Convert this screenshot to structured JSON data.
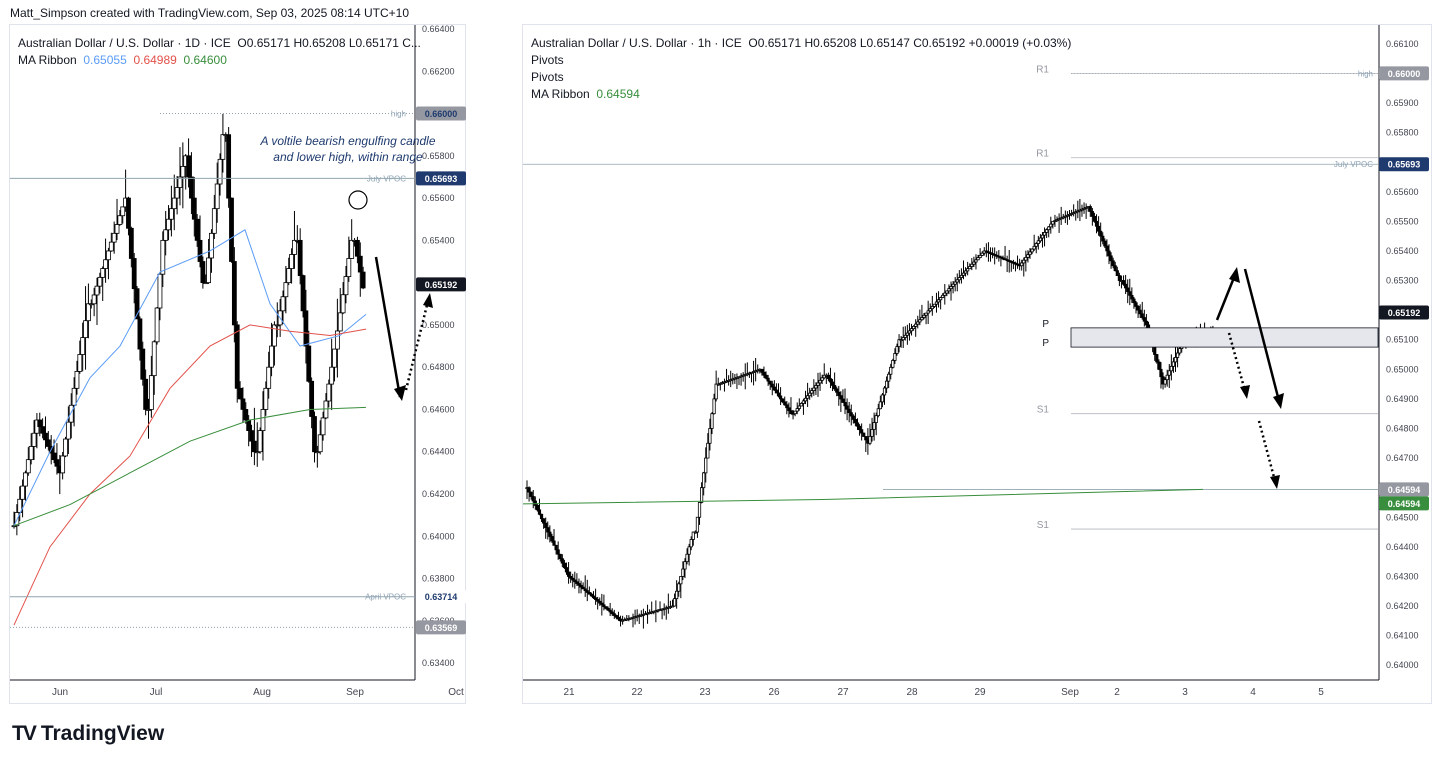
{
  "header": {
    "text": "Matt_Simpson created with TradingView.com, Sep 03, 2025 08:14 UTC+10"
  },
  "brand": {
    "logo": "TV",
    "name": "TradingView"
  },
  "colors": {
    "ma_fast": "#5b9cf6",
    "ma_mid": "#e2514a",
    "ma_slow": "#388e3c",
    "level_line": "#90a4ae",
    "last_price_bg": "#131722",
    "vpoc_bg": "#1e3a6e"
  },
  "chart_data": [
    {
      "type": "candlestick",
      "title": "Australian Dollar / U.S. Dollar · 1D · ICE",
      "ohlc_text": "O0.65171 H0.65208 L0.65171 C...",
      "indicator": {
        "name": "MA Ribbon",
        "values": [
          "0.65055",
          "0.64989",
          "0.64600"
        ]
      },
      "x_tick_labels": [
        "Jun",
        "Jul",
        "Aug",
        "Sep",
        "Oct"
      ],
      "y_tick_labels": [
        "0.63400",
        "0.63600",
        "0.63800",
        "0.64000",
        "0.64200",
        "0.64400",
        "0.64600",
        "0.64800",
        "0.65000",
        "0.65200",
        "0.65400",
        "0.65600",
        "0.65800",
        "0.66000",
        "0.66200",
        "0.66400"
      ],
      "ylim": [
        0.6332,
        0.664
      ],
      "levels": [
        {
          "label": "high",
          "value": 0.66,
          "badge": "0.66000",
          "style": "dotted"
        },
        {
          "label": "July VPOC",
          "value": 0.65693,
          "badge": "0.65693",
          "style": "solid"
        },
        {
          "label": "April VPOC",
          "value": 0.63714,
          "badge": "0.63714",
          "style": "solid"
        },
        {
          "label": "",
          "value": 0.63569,
          "badge": "0.63569",
          "style": "dotted"
        }
      ],
      "last_price": "0.65192",
      "annotation": "A voltile bearish engulfing candle and lower high, within range"
    },
    {
      "type": "candlestick",
      "title": "Australian Dollar / U.S. Dollar · 1h · ICE",
      "ohlc_text": "O0.65171 H0.65208 L0.65147 C0.65192 +0.00019 (+0.03%)",
      "indicators": [
        "Pivots",
        "Pivots"
      ],
      "indicator": {
        "name": "MA Ribbon",
        "values": [
          "0.64594"
        ]
      },
      "x_tick_labels": [
        "21",
        "22",
        "23",
        "26",
        "27",
        "28",
        "29",
        "Sep",
        "2",
        "3",
        "4",
        "5"
      ],
      "y_tick_labels": [
        "0.64000",
        "0.64100",
        "0.64200",
        "0.64300",
        "0.64400",
        "0.64500",
        "0.64600",
        "0.64700",
        "0.64800",
        "0.64900",
        "0.65000",
        "0.65100",
        "0.65200",
        "0.65300",
        "0.65400",
        "0.65500",
        "0.65600",
        "0.65700",
        "0.65800",
        "0.65900",
        "0.66000",
        "0.66100"
      ],
      "ylim": [
        0.6395,
        0.6615
      ],
      "levels": [
        {
          "label": "high",
          "value": 0.66,
          "badge": "0.66000"
        },
        {
          "label": "July VPOC",
          "value": 0.65693,
          "badge": "0.65693"
        },
        {
          "label": "",
          "value": 0.64594,
          "badge": "0.64594"
        }
      ],
      "pivots": [
        {
          "label": "R1",
          "value": 0.66
        },
        {
          "label": "R1",
          "value": 0.65715
        },
        {
          "label": "P",
          "value": 0.6514
        },
        {
          "label": "P",
          "value": 0.65075
        },
        {
          "label": "S1",
          "value": 0.6485
        },
        {
          "label": "S1",
          "value": 0.6446
        }
      ],
      "last_price": "0.65192",
      "ma_value": "0.64594"
    }
  ]
}
